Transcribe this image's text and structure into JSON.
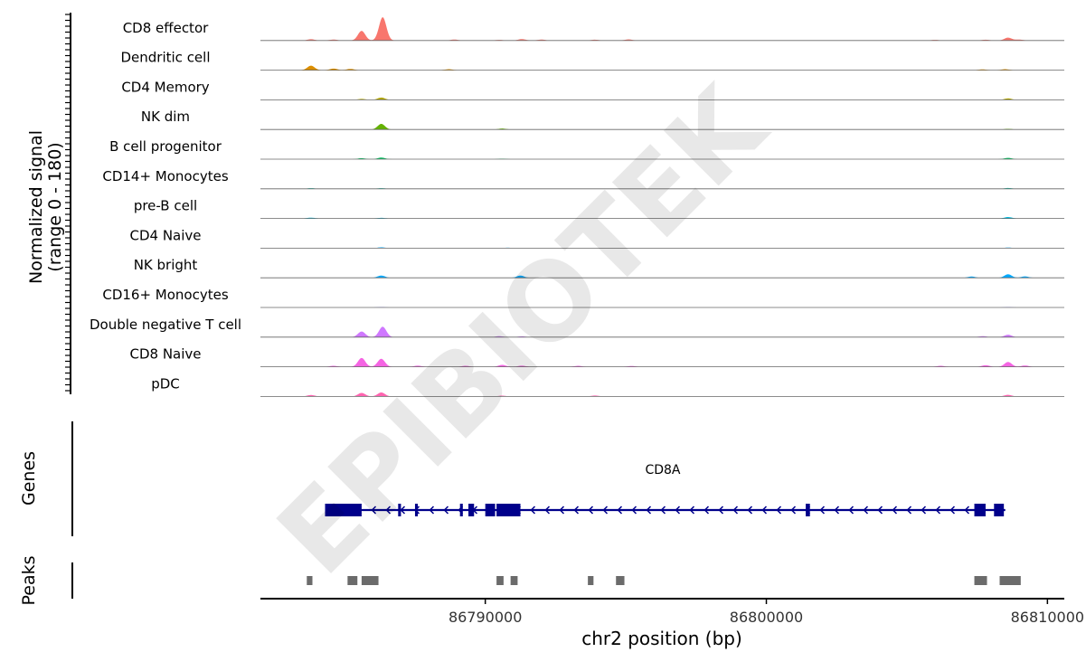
{
  "chart_data": {
    "type": "area",
    "title": "",
    "y_axis_label": [
      "Normalized signal",
      "(range 0 - 180)"
    ],
    "y_range": [
      0,
      180
    ],
    "x_axis_label": "chr2 position (bp)",
    "x_range": [
      86782000,
      86810600
    ],
    "x_ticks": [
      86790000,
      86800000,
      86810000
    ],
    "x_tick_labels": [
      "86790000",
      "86800000",
      "86810000"
    ],
    "watermark": "EPIBIOTEK",
    "track_labels": {
      "genes": "Genes",
      "peaks": "Peaks"
    },
    "gene": {
      "name": "CD8A",
      "strand": "-",
      "start": 86784300,
      "end": 86808500,
      "exons": [
        [
          86784300,
          86785600
        ],
        [
          86786900,
          86787000
        ],
        [
          86787500,
          86787600
        ],
        [
          86789100,
          86789200
        ],
        [
          86789400,
          86789600
        ],
        [
          86790000,
          86790350
        ],
        [
          86790400,
          86791250
        ],
        [
          86801400,
          86801550
        ],
        [
          86807400,
          86807800
        ],
        [
          86808100,
          86808450
        ]
      ]
    },
    "peaks": [
      [
        86783650,
        86783850
      ],
      [
        86785100,
        86785450
      ],
      [
        86785600,
        86786200
      ],
      [
        86790400,
        86790650
      ],
      [
        86790900,
        86791150
      ],
      [
        86793650,
        86793850
      ],
      [
        86794650,
        86794950
      ],
      [
        86807400,
        86807850
      ],
      [
        86808300,
        86809050
      ]
    ],
    "series": [
      {
        "name": "CD8 effector",
        "color": "#F8766D",
        "peaks": [
          [
            86783800,
            8
          ],
          [
            86784600,
            6
          ],
          [
            86785600,
            60
          ],
          [
            86786350,
            145
          ],
          [
            86788900,
            6
          ],
          [
            86790500,
            4
          ],
          [
            86791300,
            9
          ],
          [
            86792000,
            6
          ],
          [
            86793900,
            5
          ],
          [
            86795100,
            7
          ],
          [
            86806000,
            4
          ],
          [
            86807800,
            5
          ],
          [
            86808600,
            18
          ],
          [
            86809000,
            6
          ]
        ]
      },
      {
        "name": "Dendritic cell",
        "color": "#DB8E00",
        "peaks": [
          [
            86783800,
            28
          ],
          [
            86784600,
            10
          ],
          [
            86785200,
            8
          ],
          [
            86788700,
            6
          ],
          [
            86807700,
            5
          ],
          [
            86808500,
            6
          ]
        ]
      },
      {
        "name": "CD4 Memory",
        "color": "#AEA200",
        "peaks": [
          [
            86785600,
            6
          ],
          [
            86786300,
            14
          ],
          [
            86808600,
            9
          ]
        ]
      },
      {
        "name": "NK dim",
        "color": "#64B200",
        "peaks": [
          [
            86786300,
            35
          ],
          [
            86790600,
            6
          ],
          [
            86808600,
            4
          ]
        ]
      },
      {
        "name": "B cell progenitor",
        "color": "#00BD5C",
        "peaks": [
          [
            86785600,
            6
          ],
          [
            86786300,
            10
          ],
          [
            86790600,
            3
          ],
          [
            86808600,
            8
          ]
        ]
      },
      {
        "name": "CD14+ Monocytes",
        "color": "#00C1A7",
        "peaks": [
          [
            86783800,
            4
          ],
          [
            86786300,
            4
          ],
          [
            86808600,
            5
          ]
        ]
      },
      {
        "name": "pre-B cell",
        "color": "#00BADE",
        "peaks": [
          [
            86783800,
            5
          ],
          [
            86786300,
            4
          ],
          [
            86808600,
            9
          ]
        ]
      },
      {
        "name": "CD4 Naive",
        "color": "#00A6FF",
        "peaks": [
          [
            86786300,
            5
          ],
          [
            86790800,
            3
          ],
          [
            86808600,
            4
          ]
        ]
      },
      {
        "name": "NK bright",
        "color": "#00A9FF",
        "peaks": [
          [
            86786300,
            14
          ],
          [
            86791250,
            14
          ],
          [
            86807300,
            8
          ],
          [
            86808600,
            22
          ],
          [
            86809200,
            9
          ]
        ]
      },
      {
        "name": "CD16+ Monocytes",
        "color": "#8C88FF",
        "peaks": [
          [
            86786300,
            3
          ],
          [
            86808600,
            3
          ]
        ]
      },
      {
        "name": "Double negative T cell",
        "color": "#CF78FF",
        "peaks": [
          [
            86785600,
            35
          ],
          [
            86786350,
            65
          ],
          [
            86790500,
            6
          ],
          [
            86791300,
            5
          ],
          [
            86807700,
            6
          ],
          [
            86808600,
            15
          ]
        ]
      },
      {
        "name": "CD8 Naive",
        "color": "#F564E3",
        "peaks": [
          [
            86784600,
            6
          ],
          [
            86785600,
            55
          ],
          [
            86786300,
            50
          ],
          [
            86787600,
            7
          ],
          [
            86789300,
            6
          ],
          [
            86790600,
            12
          ],
          [
            86791300,
            7
          ],
          [
            86793300,
            6
          ],
          [
            86795200,
            5
          ],
          [
            86806200,
            6
          ],
          [
            86807800,
            10
          ],
          [
            86808600,
            30
          ],
          [
            86809200,
            8
          ]
        ]
      },
      {
        "name": "pDC",
        "color": "#FF64B0",
        "peaks": [
          [
            86783800,
            9
          ],
          [
            86785600,
            22
          ],
          [
            86786300,
            25
          ],
          [
            86790600,
            5
          ],
          [
            86793900,
            6
          ],
          [
            86808600,
            10
          ]
        ]
      }
    ]
  }
}
